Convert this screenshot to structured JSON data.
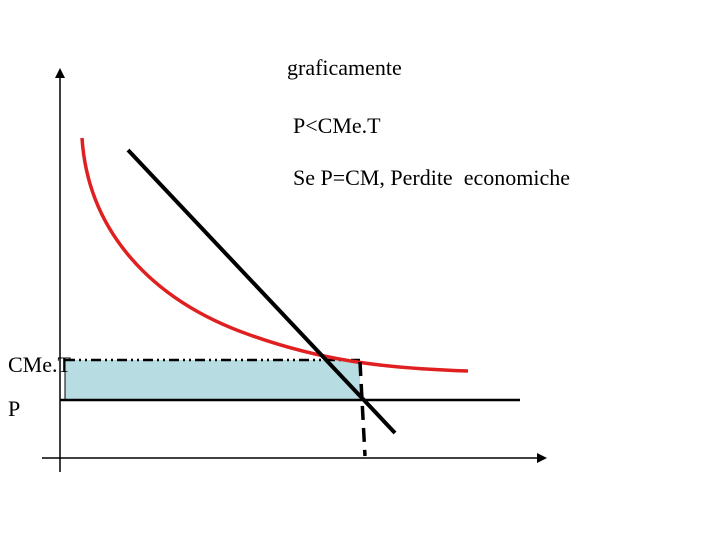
{
  "title": "graficamente",
  "notes": [
    "P<CMe.T",
    "Se P=CM, Perdite  economiche"
  ],
  "labels": {
    "cost": "CMe.T",
    "price": "P"
  }
}
